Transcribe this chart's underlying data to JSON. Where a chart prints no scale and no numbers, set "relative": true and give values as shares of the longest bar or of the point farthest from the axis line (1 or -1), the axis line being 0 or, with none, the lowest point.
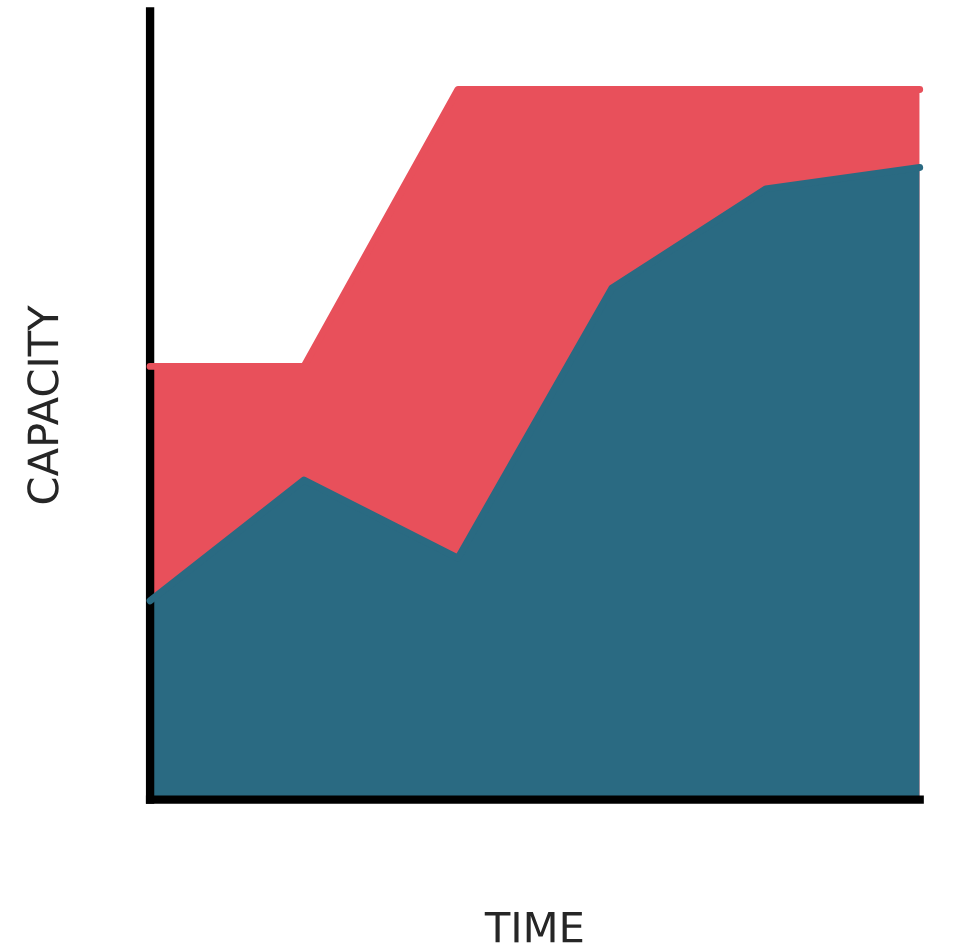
{
  "chart_data": {
    "type": "area",
    "relative": true,
    "xlabel": "TIME",
    "ylabel": "CAPACITY",
    "tick_labels": false,
    "categories": [
      null,
      null,
      null,
      null,
      null,
      null
    ],
    "series": [
      {
        "color": "#e8505b",
        "values": [
          0.61,
          0.61,
          1,
          1,
          1,
          1
        ]
      },
      {
        "color": "#2a6a82",
        "values": [
          0.28,
          0.45,
          0.34,
          0.72,
          0.86,
          0.89
        ]
      }
    ]
  }
}
